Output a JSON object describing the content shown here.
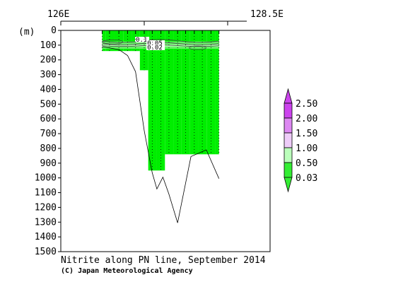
{
  "chart_data": {
    "type": "section",
    "title": "Nitrite along PN line, September 2014",
    "credit": "(C) Japan Meteorological Agency",
    "top_axis": {
      "start_label": "126E",
      "end_label": "128.5E"
    },
    "y_unit": "(m)",
    "ylim": [
      0,
      1500
    ],
    "y_ticks": [
      "0",
      "100",
      "200",
      "300",
      "400",
      "500",
      "600",
      "700",
      "800",
      "900",
      "1000",
      "1100",
      "1200",
      "1300",
      "1400",
      "1500"
    ],
    "xlim": [
      126.0,
      128.5
    ],
    "colorbar": {
      "levels": [
        "2.50",
        "2.00",
        "1.50",
        "1.00",
        "0.50",
        "0.03"
      ],
      "colors": [
        "#cc44ee",
        "#dd88f2",
        "#eeccf8",
        "#bbffbb",
        "#33ee33"
      ]
    },
    "fill_colors": {
      "low": "#00ee00",
      "mid": "#66f066",
      "high": "#aaffaa"
    },
    "contour_labels": [
      "0.1",
      "0.05",
      "0.02"
    ],
    "stations": [
      {
        "lon": 126.62,
        "bottom": 140
      },
      {
        "lon": 126.73,
        "bottom": 140
      },
      {
        "lon": 126.87,
        "bottom": 140
      },
      {
        "lon": 127.0,
        "bottom": 140
      },
      {
        "lon": 127.12,
        "bottom": 140
      },
      {
        "lon": 127.25,
        "bottom": 270
      },
      {
        "lon": 127.37,
        "bottom": 950
      },
      {
        "lon": 127.5,
        "bottom": 950
      },
      {
        "lon": 127.62,
        "bottom": 840
      },
      {
        "lon": 127.75,
        "bottom": 840
      },
      {
        "lon": 127.87,
        "bottom": 840
      },
      {
        "lon": 128.0,
        "bottom": 840
      },
      {
        "lon": 128.12,
        "bottom": 840
      },
      {
        "lon": 128.25,
        "bottom": 840
      },
      {
        "lon": 128.37,
        "bottom": 840
      }
    ],
    "bathymetry": [
      {
        "lon": 126.62,
        "depth": 110
      },
      {
        "lon": 126.87,
        "depth": 130
      },
      {
        "lon": 127.0,
        "depth": 170
      },
      {
        "lon": 127.12,
        "depth": 280
      },
      {
        "lon": 127.25,
        "depth": 680
      },
      {
        "lon": 127.37,
        "depth": 965
      },
      {
        "lon": 127.44,
        "depth": 1075
      },
      {
        "lon": 127.53,
        "depth": 995
      },
      {
        "lon": 127.62,
        "depth": 1110
      },
      {
        "lon": 127.75,
        "depth": 1305
      },
      {
        "lon": 127.95,
        "depth": 855
      },
      {
        "lon": 128.18,
        "depth": 810
      },
      {
        "lon": 128.37,
        "depth": 1005
      }
    ]
  }
}
